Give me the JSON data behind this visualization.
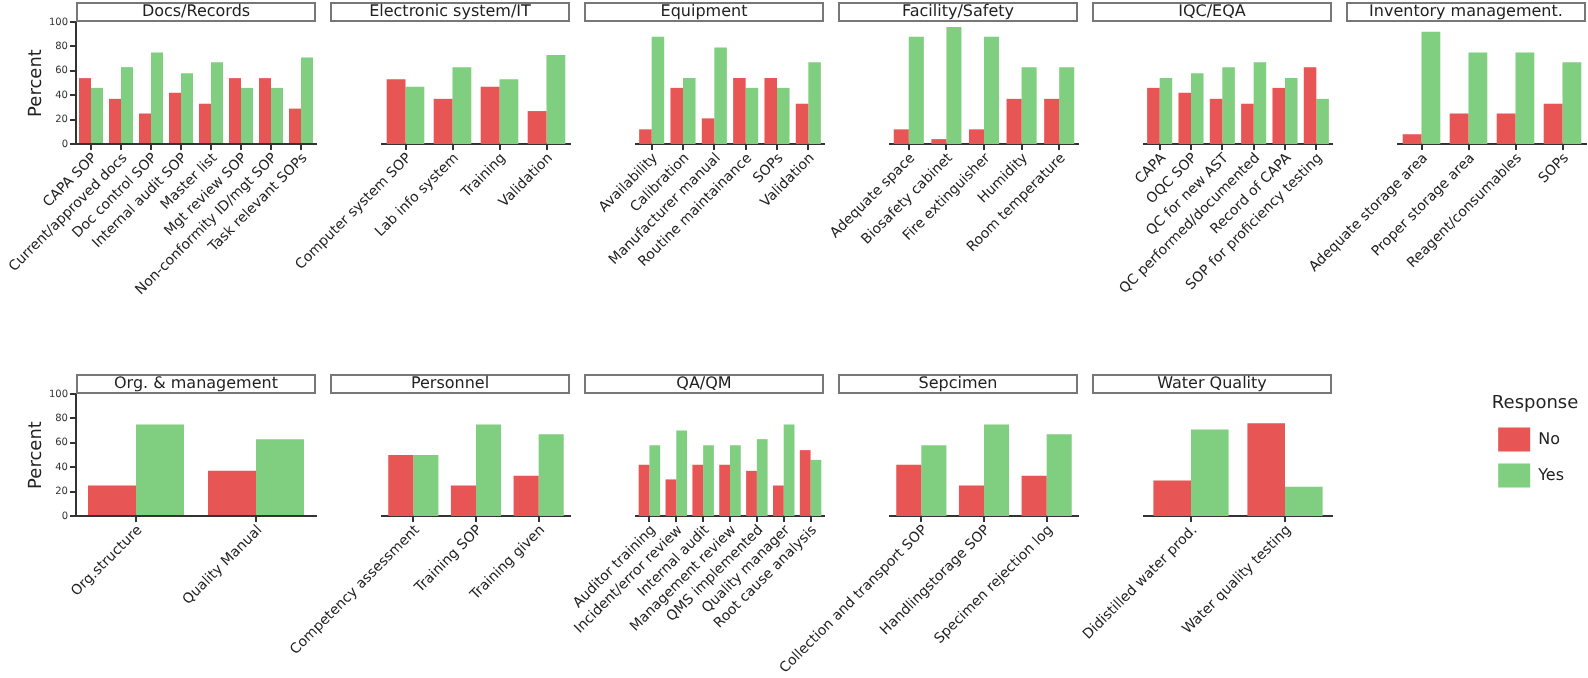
{
  "chart_data": [
    {
      "type": "bar",
      "title": "Docs/Records",
      "ylabel": "Percent",
      "categories": [
        "CAPA SOP",
        "Current/approved docs",
        "Doc control SOP",
        "Internal audit SOP",
        "Master list",
        "Mgt review SOP",
        "Non-conformity ID/mgt SOP",
        "Task relevant SOPs"
      ],
      "series": [
        {
          "color": "#e85555",
          "values": [
            54,
            37,
            25,
            42,
            33,
            54,
            54,
            29
          ]
        },
        {
          "color": "#80cf80",
          "values": [
            46,
            63,
            75,
            58,
            67,
            46,
            46,
            71
          ]
        }
      ],
      "ylim": [
        0,
        100
      ],
      "yticks": [
        0,
        20,
        40,
        60,
        80,
        100
      ]
    },
    {
      "type": "bar",
      "title": "Electronic system/IT",
      "categories": [
        "Computer system SOP",
        "Lab info system",
        "Training",
        "Validation"
      ],
      "series": [
        {
          "color": "#e85555",
          "values": [
            53,
            37,
            47,
            27
          ]
        },
        {
          "color": "#80cf80",
          "values": [
            47,
            63,
            53,
            73
          ]
        }
      ],
      "ylim": [
        0,
        100
      ],
      "yticks": [
        0,
        20,
        40,
        60,
        80,
        100
      ],
      "tick_labels": "x"
    },
    {
      "type": "bar",
      "title": "Equipment",
      "categories": [
        "Availability",
        "Calibration",
        "Manufacturer manual",
        "Routine maintainance",
        "SOPs",
        "Validation"
      ],
      "series": [
        {
          "color": "#e85555",
          "values": [
            12,
            46,
            21,
            54,
            54,
            33
          ]
        },
        {
          "color": "#80cf80",
          "values": [
            88,
            54,
            79,
            46,
            46,
            67
          ]
        }
      ],
      "ylim": [
        0,
        100
      ],
      "yticks": [
        0,
        20,
        40,
        60,
        80,
        100
      ],
      "tick_labels": "x"
    },
    {
      "type": "bar",
      "title": "Facility/Safety",
      "categories": [
        "Adequate space",
        "Biosafety cabinet",
        "Fire extinguisher",
        "Humidity",
        "Room temperature"
      ],
      "series": [
        {
          "color": "#e85555",
          "values": [
            12,
            4,
            12,
            37,
            37
          ]
        },
        {
          "color": "#80cf80",
          "values": [
            88,
            96,
            88,
            63,
            63
          ]
        }
      ],
      "ylim": [
        0,
        100
      ],
      "yticks": [
        0,
        20,
        40,
        60,
        80,
        100
      ],
      "tick_labels": "x"
    },
    {
      "type": "bar",
      "title": "IQC/EQA",
      "categories": [
        "CAPA",
        "OQC SOP",
        "QC for new AST",
        "QC performed/documented",
        "Record of CAPA",
        "SOP for proficiency testing"
      ],
      "series": [
        {
          "color": "#e85555",
          "values": [
            46,
            42,
            37,
            33,
            46,
            63
          ]
        },
        {
          "color": "#80cf80",
          "values": [
            54,
            58,
            63,
            67,
            54,
            37
          ]
        }
      ],
      "ylim": [
        0,
        100
      ],
      "yticks": [
        0,
        20,
        40,
        60,
        80,
        100
      ],
      "tick_labels": "x"
    },
    {
      "type": "bar",
      "title": "Inventory management.",
      "categories": [
        "Adequate storage area",
        "Proper storage area",
        "Reagent/consumables",
        "SOPs"
      ],
      "series": [
        {
          "color": "#e85555",
          "values": [
            8,
            25,
            25,
            33
          ]
        },
        {
          "color": "#80cf80",
          "values": [
            92,
            75,
            75,
            67
          ]
        }
      ],
      "ylim": [
        0,
        100
      ],
      "yticks": [
        0,
        20,
        40,
        60,
        80,
        100
      ],
      "tick_labels": "x"
    },
    {
      "type": "bar",
      "title": "Org. & management",
      "ylabel": "Percent",
      "categories": [
        "Org.structure",
        "Quality Manual"
      ],
      "series": [
        {
          "color": "#e85555",
          "values": [
            25,
            37
          ]
        },
        {
          "color": "#80cf80",
          "values": [
            75,
            63
          ]
        }
      ],
      "ylim": [
        0,
        100
      ],
      "yticks": [
        0,
        20,
        40,
        60,
        80,
        100
      ]
    },
    {
      "type": "bar",
      "title": "Personnel",
      "categories": [
        "Competency assessment",
        "Training SOP",
        "Training given"
      ],
      "series": [
        {
          "color": "#e85555",
          "values": [
            50,
            25,
            33
          ]
        },
        {
          "color": "#80cf80",
          "values": [
            50,
            75,
            67
          ]
        }
      ],
      "ylim": [
        0,
        100
      ],
      "yticks": [
        0,
        20,
        40,
        60,
        80,
        100
      ],
      "tick_labels": "x"
    },
    {
      "type": "bar",
      "title": "QA/QM",
      "categories": [
        "Auditor training",
        "Incident/error review",
        "Internal audit",
        "Management review",
        "QMS implemented",
        "Quality manager",
        "Root cause analysis"
      ],
      "series": [
        {
          "color": "#e85555",
          "values": [
            42,
            30,
            42,
            42,
            37,
            25,
            54
          ]
        },
        {
          "color": "#80cf80",
          "values": [
            58,
            70,
            58,
            58,
            63,
            75,
            46
          ]
        }
      ],
      "ylim": [
        0,
        100
      ],
      "yticks": [
        0,
        20,
        40,
        60,
        80,
        100
      ],
      "tick_labels": "x"
    },
    {
      "type": "bar",
      "title": "Sepcimen",
      "categories": [
        "Collection and transport SOP",
        "Handlingstorage SOP",
        "Specimen rejection log"
      ],
      "series": [
        {
          "color": "#e85555",
          "values": [
            42,
            25,
            33
          ]
        },
        {
          "color": "#80cf80",
          "values": [
            58,
            75,
            67
          ]
        }
      ],
      "ylim": [
        0,
        100
      ],
      "yticks": [
        0,
        20,
        40,
        60,
        80,
        100
      ],
      "tick_labels": "x"
    },
    {
      "type": "bar",
      "title": "Water Quality",
      "categories": [
        "Didistilled water prod.",
        "Water quality testing"
      ],
      "series": [
        {
          "name": "No",
          "color": "#e85555",
          "values": [
            29,
            76
          ]
        },
        {
          "name": "Yes",
          "color": "#80cf80",
          "values": [
            71,
            24
          ]
        }
      ],
      "ylim": [
        0,
        100
      ],
      "yticks": [
        0,
        20,
        40,
        60,
        80,
        100
      ],
      "tick_labels": "x",
      "legend": "right",
      "legend_title": "Response"
    }
  ]
}
